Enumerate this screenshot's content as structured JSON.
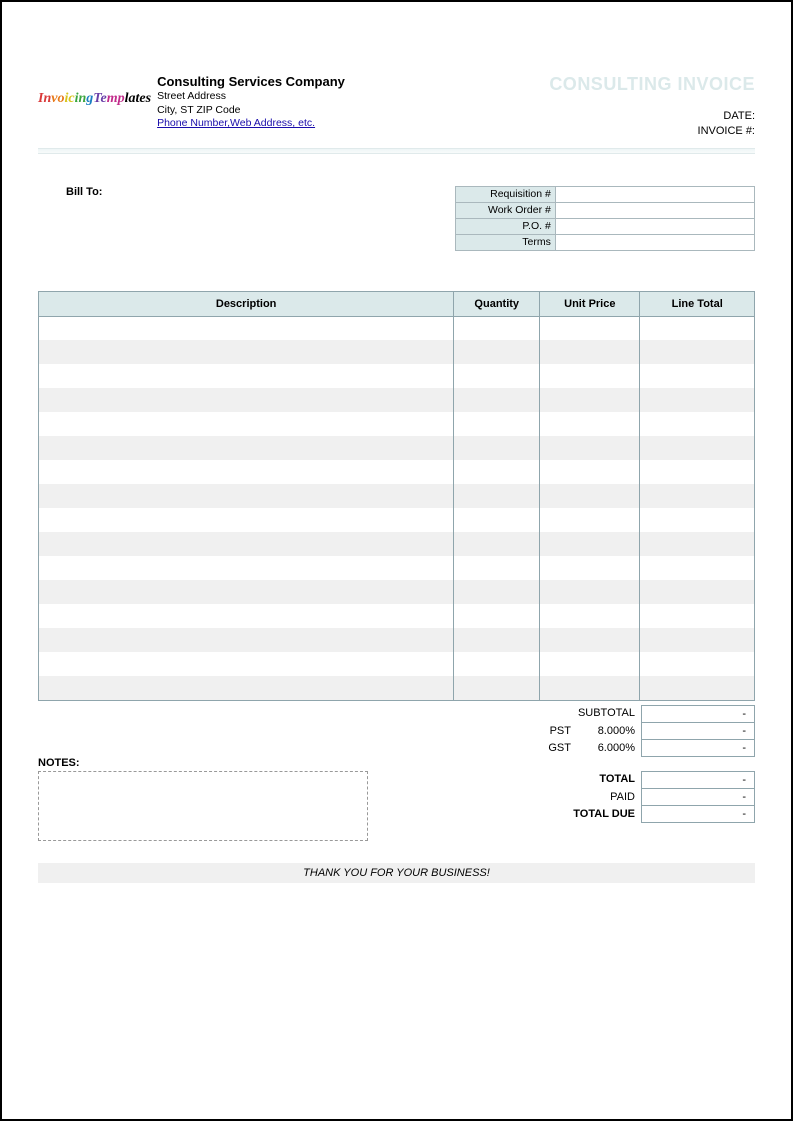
{
  "header": {
    "logo_parts": [
      "In",
      "vo",
      "ic",
      "in",
      "g",
      "Te",
      "mp",
      "lates"
    ],
    "company_name": "Consulting Services Company",
    "address1": "Street Address",
    "address2": "City, ST  ZIP Code",
    "contact_link": "Phone Number,Web Address, etc.",
    "doc_title": "CONSULTING INVOICE",
    "date_label": "DATE:",
    "invoice_no_label": "INVOICE #:"
  },
  "billto": {
    "label": "Bill To:"
  },
  "order_info": {
    "rows": [
      {
        "label": "Requisition #",
        "value": ""
      },
      {
        "label": "Work Order #",
        "value": ""
      },
      {
        "label": "P.O. #",
        "value": ""
      },
      {
        "label": "Terms",
        "value": ""
      }
    ]
  },
  "items_table": {
    "headers": {
      "description": "Description",
      "quantity": "Quantity",
      "unit_price": "Unit Price",
      "line_total": "Line Total"
    },
    "row_count": 16,
    "header_bg": "#dbe9ea",
    "stripe_bg": "#f0f0f0",
    "border_color": "#8fa5ac"
  },
  "totals": {
    "subtotal_label": "SUBTOTAL",
    "subtotal_value": "-",
    "taxes": [
      {
        "name": "PST",
        "rate": "8.000%",
        "value": "-"
      },
      {
        "name": "GST",
        "rate": "6.000%",
        "value": "-"
      }
    ],
    "total_label": "TOTAL",
    "total_value": "-",
    "paid_label": "PAID",
    "paid_value": "-",
    "due_label": "TOTAL DUE",
    "due_value": "-"
  },
  "notes": {
    "label": "NOTES:"
  },
  "footer": {
    "thankyou": "THANK YOU FOR YOUR BUSINESS!"
  },
  "colors": {
    "accent_bg": "#dbe9ea",
    "stripe": "#f0f0f0",
    "link": "#1a0dab",
    "border": "#8fa5ac"
  }
}
